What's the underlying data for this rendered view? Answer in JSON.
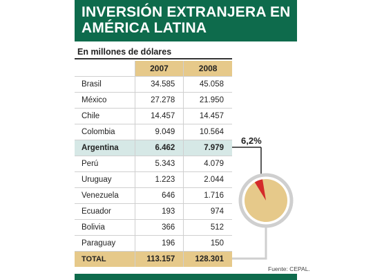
{
  "header": {
    "title": "INVERSIÓN EXTRANJERA EN\nAMÉRICA LATINA",
    "subtitle": "En millones de dólares"
  },
  "table": {
    "columns": [
      "",
      "2007",
      "2008"
    ],
    "rows": [
      {
        "country": "Brasil",
        "y2007": "34.585",
        "y2008": "45.058"
      },
      {
        "country": "México",
        "y2007": "27.278",
        "y2008": "21.950"
      },
      {
        "country": "Chile",
        "y2007": "14.457",
        "y2008": "14.457"
      },
      {
        "country": "Colombia",
        "y2007": "9.049",
        "y2008": "10.564"
      },
      {
        "country": "Argentina",
        "y2007": "6.462",
        "y2008": "7.979"
      },
      {
        "country": "Perú",
        "y2007": "5.343",
        "y2008": "4.079"
      },
      {
        "country": "Uruguay",
        "y2007": "1.223",
        "y2008": "2.044"
      },
      {
        "country": "Venezuela",
        "y2007": "646",
        "y2008": "1.716"
      },
      {
        "country": "Ecuador",
        "y2007": "193",
        "y2008": "974"
      },
      {
        "country": "Bolivia",
        "y2007": "366",
        "y2008": "512"
      },
      {
        "country": "Paraguay",
        "y2007": "196",
        "y2008": "150"
      }
    ],
    "total": {
      "label": "TOTAL",
      "y2007": "113.157",
      "y2008": "128.301"
    },
    "highlighted_row": "Argentina"
  },
  "callout": {
    "label": "6,2%"
  },
  "source": "Fuente: CEPAL.",
  "colors": {
    "banner": "#0e6b4c",
    "header_bg": "#e6c98a",
    "highlight_bg": "#d6e8e6",
    "pie_fill": "#e6c98a",
    "slice": "#d42a2a",
    "connector": "#bdbdbd"
  },
  "chart_data": {
    "type": "table",
    "title": "INVERSIÓN EXTRANJERA EN AMÉRICA LATINA",
    "subtitle": "En millones de dólares",
    "categories": [
      "Brasil",
      "México",
      "Chile",
      "Colombia",
      "Argentina",
      "Perú",
      "Uruguay",
      "Venezuela",
      "Ecuador",
      "Bolivia",
      "Paraguay",
      "TOTAL"
    ],
    "series": [
      {
        "name": "2007",
        "values": [
          34585,
          27278,
          14457,
          9049,
          6462,
          5343,
          1223,
          646,
          193,
          366,
          196,
          113157
        ]
      },
      {
        "name": "2008",
        "values": [
          45058,
          21950,
          14457,
          10564,
          7979,
          4079,
          2044,
          1716,
          974,
          512,
          150,
          128301
        ]
      }
    ],
    "pie": {
      "type": "pie",
      "slice_percent": 6.2
    }
  }
}
